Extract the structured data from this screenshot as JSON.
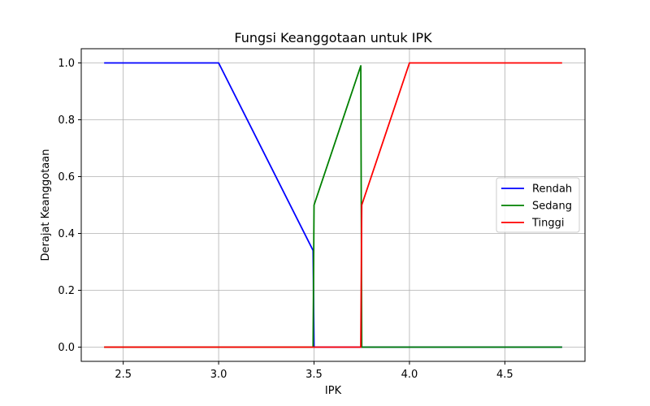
{
  "chart_data": {
    "type": "line",
    "title": "Fungsi Keanggotaan untuk IPK",
    "xlabel": "IPK",
    "ylabel": "Derajat Keanggotaan",
    "xlim": [
      2.28,
      4.92
    ],
    "ylim": [
      -0.05,
      1.05
    ],
    "xticks": [
      2.5,
      3.0,
      3.5,
      4.0,
      4.5
    ],
    "xtick_labels": [
      "2.5",
      "3.0",
      "3.5",
      "4.0",
      "4.5"
    ],
    "yticks": [
      0.0,
      0.2,
      0.4,
      0.6,
      0.8,
      1.0
    ],
    "ytick_labels": [
      "0.0",
      "0.2",
      "0.4",
      "0.6",
      "0.8",
      "1.0"
    ],
    "grid": true,
    "legend_position": "center-right",
    "series": [
      {
        "name": "Rendah",
        "color": "#0000ff",
        "x": [
          2.4,
          3.0,
          3.495,
          3.5,
          4.8
        ],
        "y": [
          1.0,
          1.0,
          0.34,
          0.0,
          0.0
        ]
      },
      {
        "name": "Sedang",
        "color": "#008000",
        "x": [
          2.4,
          3.495,
          3.5,
          3.745,
          3.75,
          4.8
        ],
        "y": [
          0.0,
          0.0,
          0.5,
          0.99,
          0.0,
          0.0
        ]
      },
      {
        "name": "Tinggi",
        "color": "#ff0000",
        "x": [
          2.4,
          3.745,
          3.75,
          4.0,
          4.8
        ],
        "y": [
          0.0,
          0.0,
          0.5,
          1.0,
          1.0
        ]
      }
    ]
  }
}
